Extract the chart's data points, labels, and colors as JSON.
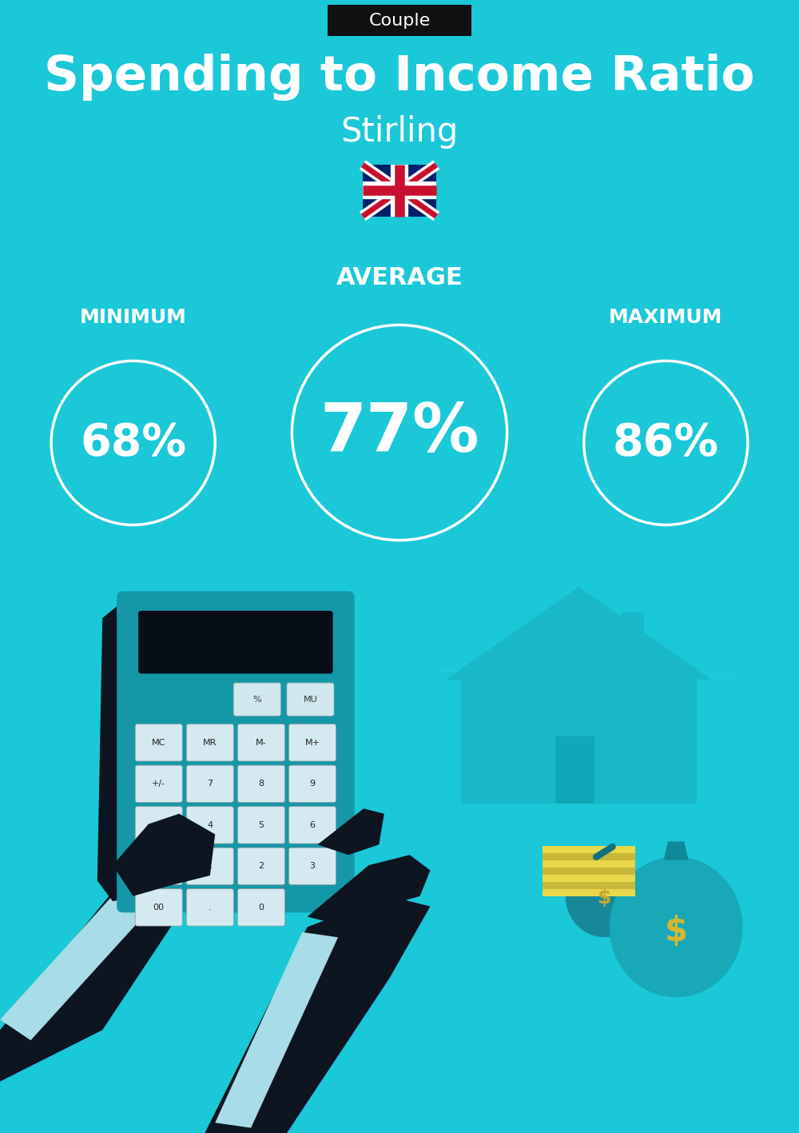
{
  "title": "Spending to Income Ratio",
  "subtitle": "Stirling",
  "tag": "Couple",
  "bg_color": "#1ac8d8",
  "tag_bg": "#111111",
  "tag_text_color": "#ffffff",
  "title_color": "#ffffff",
  "subtitle_color": "#ffffff",
  "avg_label": "AVERAGE",
  "min_label": "MINIMUM",
  "max_label": "MAXIMUM",
  "avg_value": "77%",
  "min_value": "68%",
  "max_value": "86%",
  "label_color": "#ffffff",
  "value_color": "#ffffff",
  "circle_color": "#ffffff",
  "arrow_color": "#2ad4e0",
  "dark_color": "#0d1520",
  "house_color": "#18b8c8",
  "bag_color": "#1bbccc",
  "calc_color": "#1aafc0",
  "cuff_color": "#a8dce8"
}
